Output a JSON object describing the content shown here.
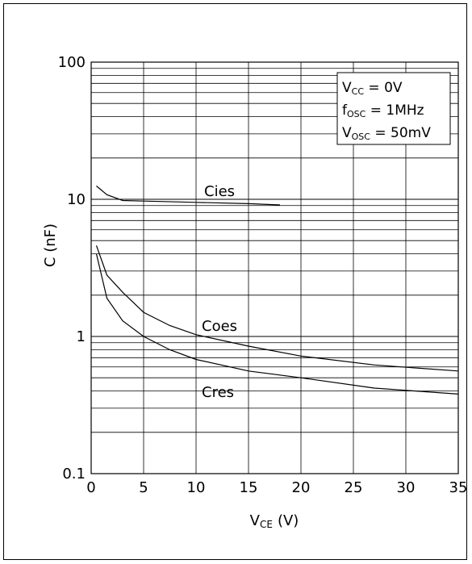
{
  "chart_data": {
    "type": "line",
    "xlabel": "V",
    "xlabel_subscript": "CE",
    "xlabel_unit": "(V)",
    "ylabel": "C (nF)",
    "xlim": [
      0,
      35
    ],
    "ylim": [
      0.1,
      100
    ],
    "yscale": "log",
    "grid": true,
    "x_ticks": [
      "0",
      "5",
      "10",
      "15",
      "20",
      "25",
      "30",
      "35"
    ],
    "y_ticks": [
      {
        "value": 0.1,
        "label": "0.1"
      },
      {
        "value": 1,
        "label": "1"
      },
      {
        "value": 10,
        "label": "10"
      },
      {
        "value": 100,
        "label": "100"
      }
    ],
    "series": [
      {
        "name": "Cies",
        "x": [
          0.5,
          1.5,
          3,
          5,
          10,
          15,
          18
        ],
        "y": [
          12.5,
          10.8,
          9.8,
          9.7,
          9.5,
          9.3,
          9.1
        ]
      },
      {
        "name": "Coes",
        "x": [
          0.5,
          1.5,
          3,
          5,
          7.5,
          10,
          15,
          20,
          27,
          35
        ],
        "y": [
          4.6,
          2.8,
          2.1,
          1.5,
          1.2,
          1.03,
          0.85,
          0.72,
          0.62,
          0.56
        ]
      },
      {
        "name": "Cres",
        "x": [
          0.5,
          1.5,
          3,
          5,
          7.5,
          10,
          15,
          20,
          27,
          35
        ],
        "y": [
          4.0,
          1.9,
          1.3,
          1.0,
          0.8,
          0.68,
          0.56,
          0.5,
          0.42,
          0.38
        ]
      }
    ],
    "annotation": {
      "line1": {
        "main": "V",
        "sub": "CC",
        "rest": " = 0V"
      },
      "line2": {
        "main": "f",
        "sub": "OSC",
        "rest": " = 1MHz"
      },
      "line3": {
        "main": "V",
        "sub": "OSC",
        "rest": " = 50mV"
      }
    }
  }
}
